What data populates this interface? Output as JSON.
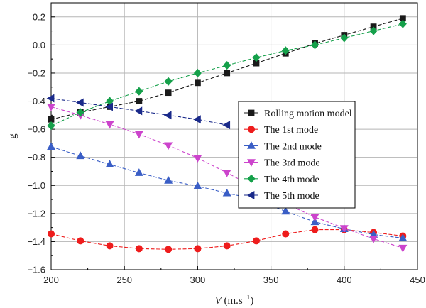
{
  "chart_data": {
    "type": "line",
    "xlabel_main": "V",
    "xlabel_unit": " (m.s",
    "xlabel_sup": "−1",
    "xlabel_close": ")",
    "ylabel": "g",
    "xlim": [
      200,
      450
    ],
    "ylim": [
      -1.6,
      0.3
    ],
    "x_ticks": [
      200,
      250,
      300,
      350,
      400,
      450
    ],
    "y_ticks": [
      0.2,
      0.0,
      -0.2,
      -0.4,
      -0.6,
      -0.8,
      -1.0,
      -1.2,
      -1.4,
      -1.6
    ],
    "x_tick_labels": [
      "200",
      "250",
      "300",
      "350",
      "400",
      "450"
    ],
    "y_tick_labels": [
      "0.2",
      "0.0",
      "−0.2",
      "−0.4",
      "−0.6",
      "−0.8",
      "−1.0",
      "−1.2",
      "−1.4",
      "−1.6"
    ],
    "grid": true,
    "legend_position": "right-middle",
    "series": [
      {
        "name": "Rolling motion model",
        "color": "#1a1a1a",
        "marker": "square",
        "x": [
          200,
          220,
          240,
          260,
          280,
          300,
          320,
          340,
          360,
          380,
          400,
          420,
          440
        ],
        "y": [
          -0.53,
          -0.48,
          -0.44,
          -0.4,
          -0.34,
          -0.27,
          -0.2,
          -0.13,
          -0.06,
          0.01,
          0.07,
          0.13,
          0.19
        ]
      },
      {
        "name": "The 1st mode",
        "color": "#ee1c1c",
        "marker": "circle",
        "x": [
          200,
          220,
          240,
          260,
          280,
          300,
          320,
          340,
          360,
          380,
          400,
          420,
          440
        ],
        "y": [
          -1.345,
          -1.395,
          -1.43,
          -1.45,
          -1.455,
          -1.45,
          -1.43,
          -1.395,
          -1.345,
          -1.315,
          -1.315,
          -1.335,
          -1.36
        ]
      },
      {
        "name": "The 2nd mode",
        "color": "#3a5ec6",
        "marker": "triangle-up",
        "x": [
          200,
          220,
          240,
          260,
          280,
          300,
          320,
          340,
          360,
          380,
          400,
          420,
          440
        ],
        "y": [
          -0.725,
          -0.79,
          -0.85,
          -0.91,
          -0.965,
          -1.005,
          -1.055,
          -1.1,
          -1.185,
          -1.26,
          -1.31,
          -1.35,
          -1.375
        ]
      },
      {
        "name": "The 3rd mode",
        "color": "#cc44cc",
        "marker": "triangle-down",
        "x": [
          200,
          220,
          240,
          260,
          280,
          300,
          320,
          340,
          360,
          380,
          400,
          420,
          440
        ],
        "y": [
          -0.44,
          -0.5,
          -0.565,
          -0.635,
          -0.715,
          -0.805,
          -0.91,
          -1.02,
          -1.13,
          -1.225,
          -1.305,
          -1.38,
          -1.445
        ]
      },
      {
        "name": "The 4th mode",
        "color": "#15a04a",
        "marker": "diamond",
        "x": [
          200,
          220,
          240,
          260,
          280,
          300,
          320,
          340,
          360,
          380,
          400,
          420,
          440
        ],
        "y": [
          -0.575,
          -0.48,
          -0.4,
          -0.33,
          -0.26,
          -0.2,
          -0.145,
          -0.09,
          -0.04,
          0.0,
          0.05,
          0.1,
          0.15
        ]
      },
      {
        "name": "The 5th mode",
        "color": "#1a2a8a",
        "marker": "triangle-left",
        "x": [
          200,
          220,
          240,
          260,
          280,
          300,
          320
        ],
        "y": [
          -0.38,
          -0.41,
          -0.44,
          -0.47,
          -0.5,
          -0.53,
          -0.57
        ]
      }
    ]
  }
}
